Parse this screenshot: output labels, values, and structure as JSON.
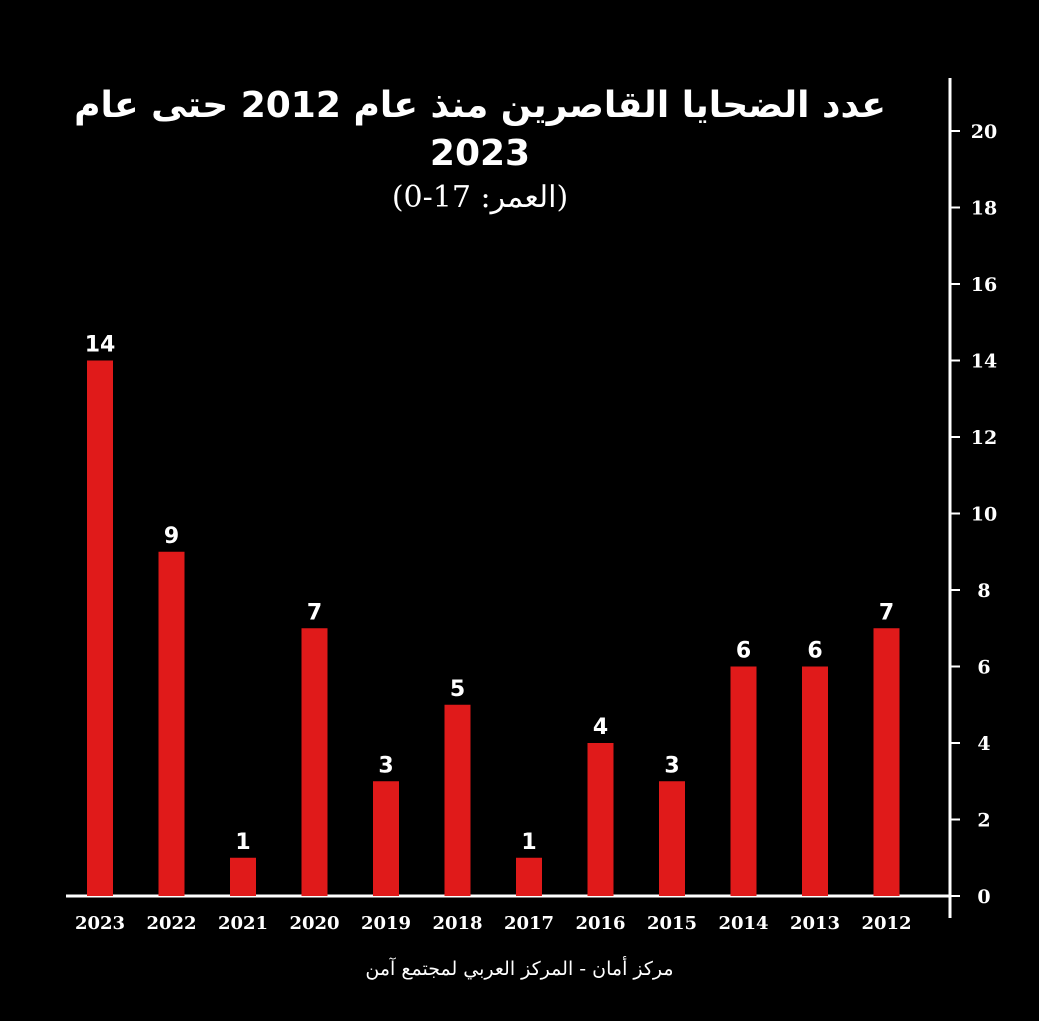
{
  "chart_data": {
    "type": "bar",
    "title": "عدد الضحايا القاصرين منذ عام 2012 حتى عام 2023",
    "subtitle": "(العمر: 17-0)",
    "xlabel": "",
    "ylabel": "",
    "ylim": [
      0,
      20
    ],
    "yticks": [
      0,
      2,
      4,
      6,
      8,
      10,
      12,
      14,
      16,
      18,
      20
    ],
    "y_axis_side": "right",
    "categories": [
      "2023",
      "2022",
      "2021",
      "2020",
      "2019",
      "2018",
      "2017",
      "2016",
      "2015",
      "2014",
      "2013",
      "2012"
    ],
    "values": [
      14,
      9,
      1,
      7,
      3,
      5,
      1,
      4,
      3,
      6,
      6,
      7
    ],
    "data_labels": [
      "14",
      "9",
      "1",
      "7",
      "3",
      "5",
      "1",
      "4",
      "3",
      "6",
      "6",
      "7"
    ],
    "grid": false,
    "colors": {
      "bar": "#e01a1a",
      "background": "#000000",
      "text": "#ffffff"
    }
  },
  "source": "مركز أمان - المركز العربي لمجتمع آمن"
}
